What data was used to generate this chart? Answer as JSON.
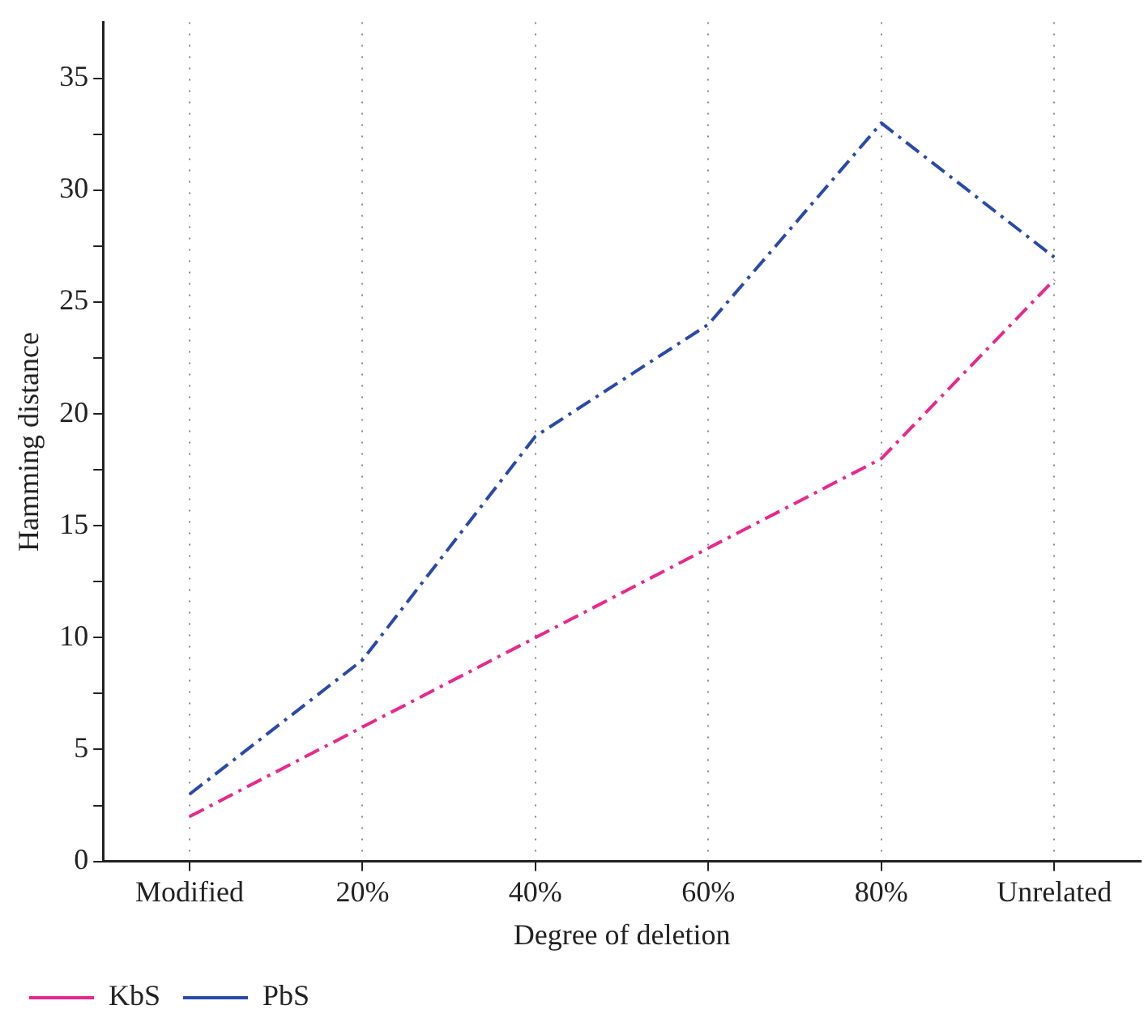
{
  "chart_data": {
    "type": "line",
    "xlabel": "Degree of deletion",
    "ylabel": "Hamming distance",
    "categories": [
      "Modified",
      "20%",
      "40%",
      "60%",
      "80%",
      "Unrelated"
    ],
    "series": [
      {
        "name": "KbS",
        "color": "#e8288c",
        "values": [
          2,
          6,
          10,
          14,
          18,
          26
        ],
        "line_style": "dashed"
      },
      {
        "name": "PbS",
        "color": "#2a4aa8",
        "values": [
          3,
          9,
          19,
          24,
          33,
          27
        ],
        "line_style": "dashed"
      }
    ],
    "ylim": [
      0,
      37.5
    ],
    "yticks": [
      0,
      {
        "value": 2.5,
        "label": null
      },
      5,
      {
        "value": 7.5,
        "label": null
      },
      10,
      {
        "value": 12.5,
        "label": null
      },
      15,
      {
        "value": 17.5,
        "label": null
      },
      20,
      {
        "value": 22.5,
        "label": null
      },
      25,
      {
        "value": 27.5,
        "label": null
      },
      30,
      {
        "value": 32.5,
        "label": null
      },
      35
    ],
    "grid": "x",
    "legend": "bottom",
    "marker": "none"
  }
}
